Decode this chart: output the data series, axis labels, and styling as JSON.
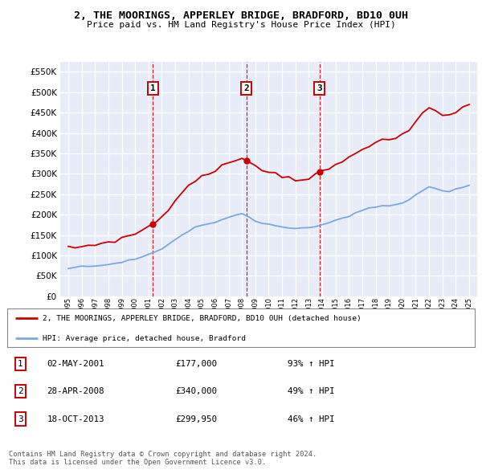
{
  "title": "2, THE MOORINGS, APPERLEY BRIDGE, BRADFORD, BD10 0UH",
  "subtitle": "Price paid vs. HM Land Registry's House Price Index (HPI)",
  "legend_label_red": "2, THE MOORINGS, APPERLEY BRIDGE, BRADFORD, BD10 0UH (detached house)",
  "legend_label_blue": "HPI: Average price, detached house, Bradford",
  "sales": [
    {
      "num": 1,
      "date": "02-MAY-2001",
      "year": 2001.33,
      "price": 177000,
      "pct": "93%"
    },
    {
      "num": 2,
      "date": "28-APR-2008",
      "year": 2008.32,
      "price": 340000,
      "pct": "49%"
    },
    {
      "num": 3,
      "date": "18-OCT-2013",
      "year": 2013.79,
      "price": 299950,
      "pct": "46%"
    }
  ],
  "footnote1": "Contains HM Land Registry data © Crown copyright and database right 2024.",
  "footnote2": "This data is licensed under the Open Government Licence v3.0.",
  "ylim": [
    0,
    575000
  ],
  "yticks": [
    0,
    50000,
    100000,
    150000,
    200000,
    250000,
    300000,
    350000,
    400000,
    450000,
    500000,
    550000
  ],
  "background_color": "#e8ecf8",
  "grid_color": "#ffffff",
  "red_color": "#cc0000",
  "blue_color": "#7aaadd",
  "hpi_values": [
    70000,
    71000,
    72000,
    73500,
    75000,
    77000,
    79000,
    81000,
    84000,
    87000,
    91000,
    96000,
    101000,
    107000,
    116000,
    127000,
    138000,
    150000,
    161000,
    169000,
    173000,
    177000,
    182000,
    188000,
    194000,
    199000,
    201000,
    193000,
    183000,
    178000,
    176000,
    173000,
    170000,
    168000,
    166000,
    165000,
    167000,
    171000,
    176000,
    181000,
    186000,
    191000,
    197000,
    204000,
    211000,
    215000,
    218000,
    220000,
    222000,
    225000,
    228000,
    235000,
    248000,
    260000,
    268000,
    264000,
    259000,
    257000,
    261000,
    267000,
    273000
  ],
  "years_hpi": [
    1995.0,
    1995.5,
    1996.0,
    1996.5,
    1997.0,
    1997.5,
    1998.0,
    1998.5,
    1999.0,
    1999.5,
    2000.0,
    2000.5,
    2001.0,
    2001.5,
    2002.0,
    2002.5,
    2003.0,
    2003.5,
    2004.0,
    2004.5,
    2005.0,
    2005.5,
    2006.0,
    2006.5,
    2007.0,
    2007.5,
    2008.0,
    2008.5,
    2009.0,
    2009.5,
    2010.0,
    2010.5,
    2011.0,
    2011.5,
    2012.0,
    2012.5,
    2013.0,
    2013.5,
    2014.0,
    2014.5,
    2015.0,
    2015.5,
    2016.0,
    2016.5,
    2017.0,
    2017.5,
    2018.0,
    2018.5,
    2019.0,
    2019.5,
    2020.0,
    2020.5,
    2021.0,
    2021.5,
    2022.0,
    2022.5,
    2023.0,
    2023.5,
    2024.0,
    2024.5,
    2025.0
  ]
}
